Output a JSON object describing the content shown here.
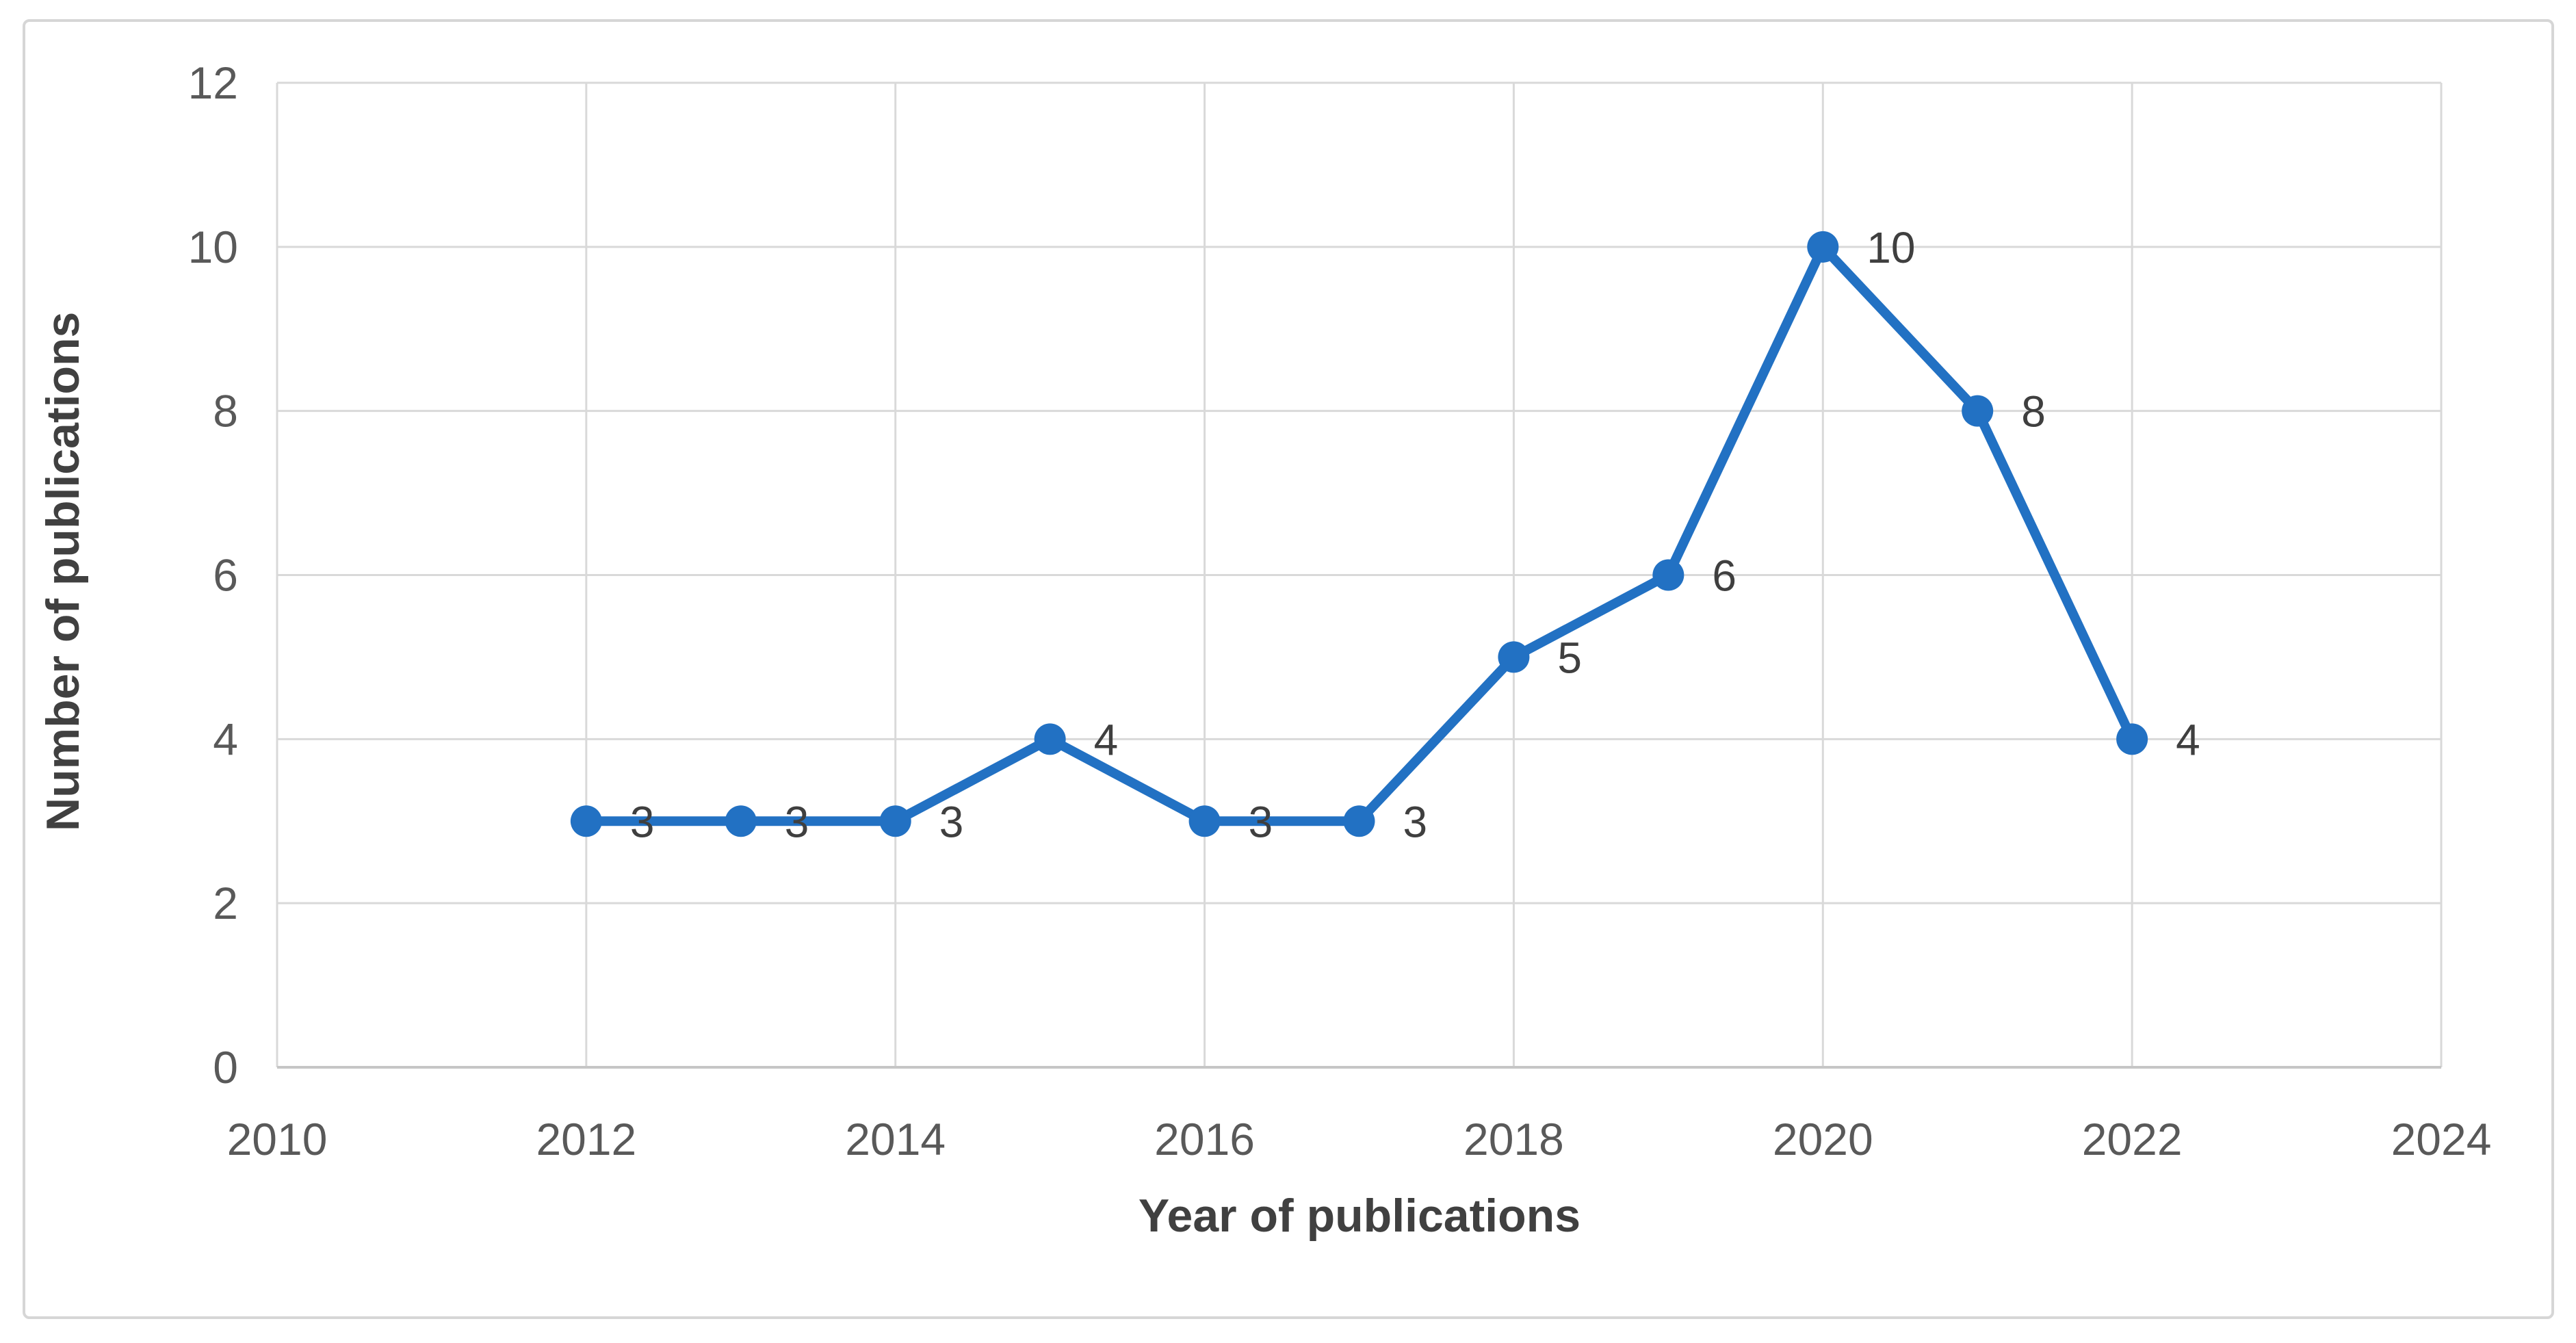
{
  "chart_data": {
    "type": "line",
    "x": [
      2012,
      2013,
      2014,
      2015,
      2016,
      2017,
      2018,
      2019,
      2020,
      2021,
      2022
    ],
    "values": [
      3,
      3,
      3,
      4,
      3,
      3,
      5,
      6,
      10,
      8,
      4
    ],
    "data_labels": [
      "3",
      "3",
      "3",
      "4",
      "3",
      "3",
      "5",
      "6",
      "10",
      "8",
      "4"
    ],
    "title": "",
    "xlabel": "Year of publications",
    "ylabel": "Number of publications",
    "xlim": [
      2010,
      2024
    ],
    "ylim": [
      0,
      12
    ],
    "xticks": [
      2010,
      2012,
      2014,
      2016,
      2018,
      2020,
      2022,
      2024
    ],
    "yticks": [
      0,
      2,
      4,
      6,
      8,
      10,
      12
    ],
    "grid": true,
    "legend": false,
    "marker": "circle",
    "line_color": "#2271c3",
    "marker_color": "#2271c3"
  },
  "colors": {
    "gridline": "#d9d9d9",
    "axis_line": "#c6c6c6",
    "tick_text": "#595959",
    "data_label_text": "#3f3f3f",
    "axis_title_text": "#404040",
    "frame_border": "#d6d6d6",
    "background": "#ffffff"
  }
}
